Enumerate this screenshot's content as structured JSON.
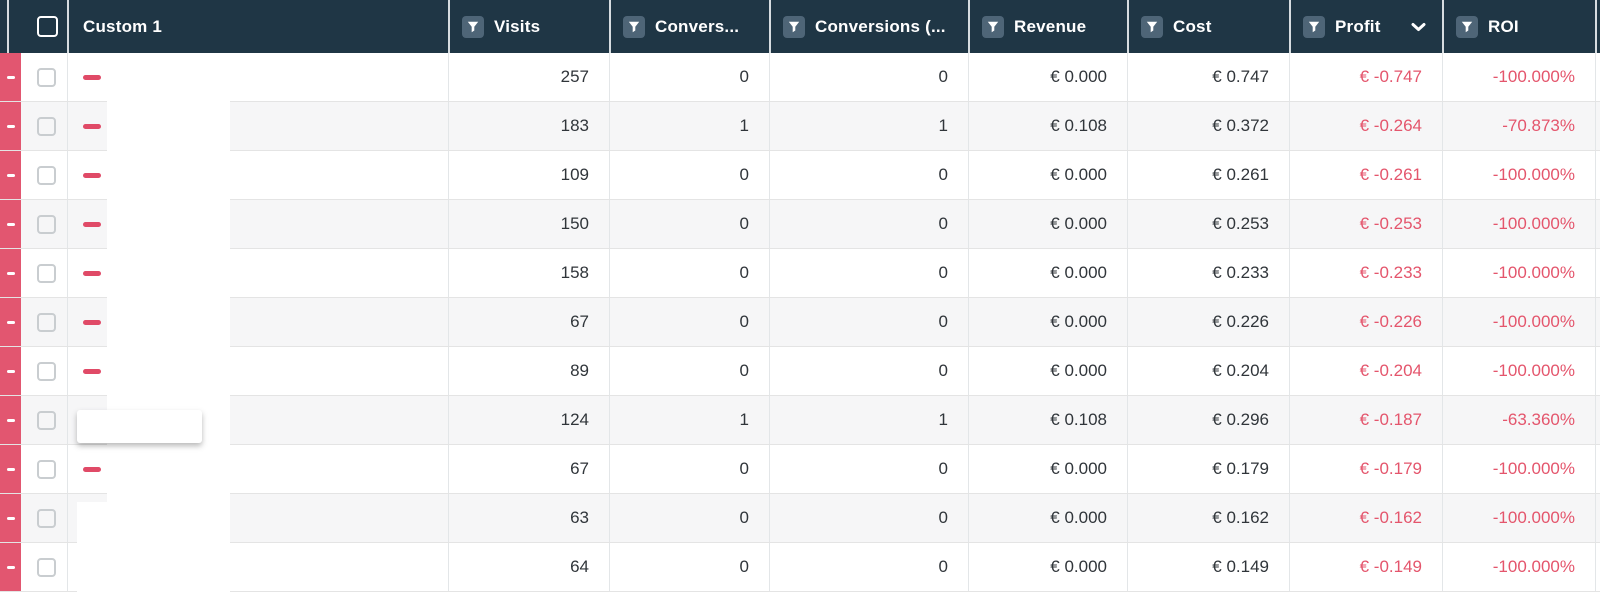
{
  "table": {
    "columns": [
      {
        "key": "custom1",
        "label": "Custom 1",
        "filter": false,
        "sorted": null
      },
      {
        "key": "visits",
        "label": "Visits",
        "filter": true,
        "sorted": null
      },
      {
        "key": "conversions",
        "label": "Convers...",
        "filter": true,
        "sorted": null
      },
      {
        "key": "conversions_alt",
        "label": "Conversions (...",
        "filter": true,
        "sorted": null
      },
      {
        "key": "revenue",
        "label": "Revenue",
        "filter": true,
        "sorted": null
      },
      {
        "key": "cost",
        "label": "Cost",
        "filter": true,
        "sorted": null
      },
      {
        "key": "profit",
        "label": "Profit",
        "filter": true,
        "sorted": "desc"
      },
      {
        "key": "roi",
        "label": "ROI",
        "filter": true,
        "sorted": null
      }
    ],
    "rows": [
      {
        "visits": "257",
        "conversions": "0",
        "conversions_alt": "0",
        "revenue": "€ 0.000",
        "cost": "€ 0.747",
        "profit": "€ -0.747",
        "roi": "-100.000%"
      },
      {
        "visits": "183",
        "conversions": "1",
        "conversions_alt": "1",
        "revenue": "€ 0.108",
        "cost": "€ 0.372",
        "profit": "€ -0.264",
        "roi": "-70.873%"
      },
      {
        "visits": "109",
        "conversions": "0",
        "conversions_alt": "0",
        "revenue": "€ 0.000",
        "cost": "€ 0.261",
        "profit": "€ -0.261",
        "roi": "-100.000%"
      },
      {
        "visits": "150",
        "conversions": "0",
        "conversions_alt": "0",
        "revenue": "€ 0.000",
        "cost": "€ 0.253",
        "profit": "€ -0.253",
        "roi": "-100.000%"
      },
      {
        "visits": "158",
        "conversions": "0",
        "conversions_alt": "0",
        "revenue": "€ 0.000",
        "cost": "€ 0.233",
        "profit": "€ -0.233",
        "roi": "-100.000%"
      },
      {
        "visits": "67",
        "conversions": "0",
        "conversions_alt": "0",
        "revenue": "€ 0.000",
        "cost": "€ 0.226",
        "profit": "€ -0.226",
        "roi": "-100.000%"
      },
      {
        "visits": "89",
        "conversions": "0",
        "conversions_alt": "0",
        "revenue": "€ 0.000",
        "cost": "€ 0.204",
        "profit": "€ -0.204",
        "roi": "-100.000%"
      },
      {
        "visits": "124",
        "conversions": "1",
        "conversions_alt": "1",
        "revenue": "€ 0.108",
        "cost": "€ 0.296",
        "profit": "€ -0.187",
        "roi": "-63.360%"
      },
      {
        "visits": "67",
        "conversions": "0",
        "conversions_alt": "0",
        "revenue": "€ 0.000",
        "cost": "€ 0.179",
        "profit": "€ -0.179",
        "roi": "-100.000%"
      },
      {
        "visits": "63",
        "conversions": "0",
        "conversions_alt": "0",
        "revenue": "€ 0.000",
        "cost": "€ 0.162",
        "profit": "€ -0.162",
        "roi": "-100.000%"
      },
      {
        "visits": "64",
        "conversions": "0",
        "conversions_alt": "0",
        "revenue": "€ 0.000",
        "cost": "€ 0.149",
        "profit": "€ -0.149",
        "roi": "-100.000%"
      }
    ],
    "icons": {
      "filter": "filter-funnel-icon",
      "sort": "chevron-down-icon",
      "row_status": "minus-dash-icon"
    },
    "colors": {
      "header_bg": "#1F3645",
      "filter_chip_bg": "#4E6577",
      "status_strip_red": "#E25670",
      "status_dash_red": "#E04A67",
      "negative_value_red": "#E4556C",
      "row_alt_bg": "#F6F6F7"
    }
  }
}
